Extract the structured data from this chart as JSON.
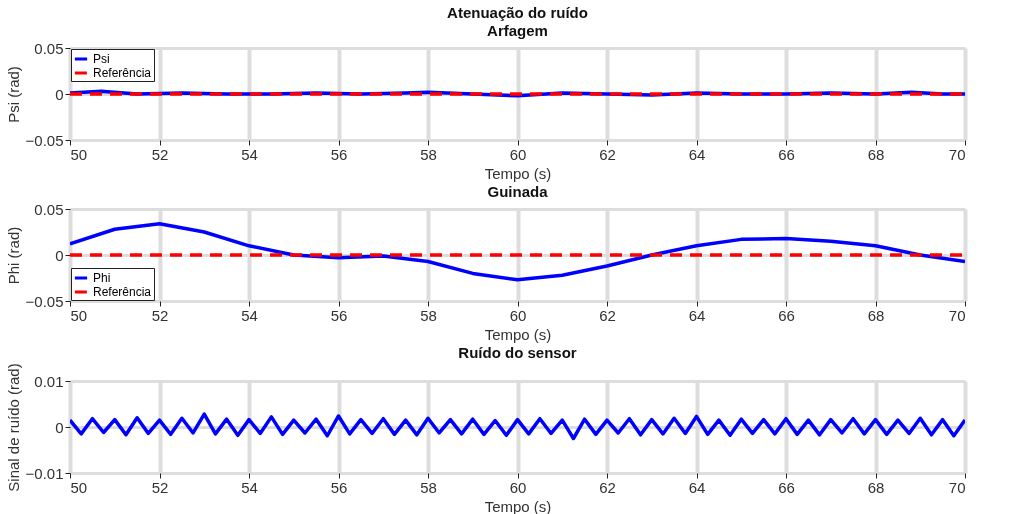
{
  "chart_data": [
    {
      "type": "line",
      "title": "Atenuação do ruído",
      "subtitle": "Arfagem",
      "xlabel": "Tempo (s)",
      "ylabel": "Psi (rad)",
      "xlim": [
        50,
        70
      ],
      "xticks": [
        50,
        52,
        54,
        56,
        58,
        60,
        62,
        64,
        66,
        68,
        70
      ],
      "ylim": [
        -0.05,
        0.05
      ],
      "yticks": [
        -0.05,
        0,
        0.05
      ],
      "grid": true,
      "legend": "top left",
      "x": [
        50,
        50.7,
        51.5,
        52.5,
        53.5,
        54.5,
        55.5,
        56.5,
        57.5,
        58,
        59,
        60,
        61,
        62,
        63,
        64,
        65,
        66,
        67,
        68,
        68.8,
        69.5,
        70
      ],
      "series": [
        {
          "name": "Psi",
          "color": "#0000ff",
          "line_style": "solid",
          "values": [
            0.001,
            0.003,
            0.0,
            0.001,
            0.0,
            0.0,
            0.001,
            0.0,
            0.001,
            0.002,
            0.0,
            -0.002,
            0.001,
            0.0,
            -0.001,
            0.001,
            0.0,
            0.0,
            0.001,
            0.0,
            0.002,
            0.0,
            0.0
          ]
        },
        {
          "name": "Referência",
          "color": "#ff0000",
          "line_style": "dashed",
          "values": [
            0,
            0,
            0,
            0,
            0,
            0,
            0,
            0,
            0,
            0,
            0,
            0,
            0,
            0,
            0,
            0,
            0,
            0,
            0,
            0,
            0,
            0,
            0
          ]
        }
      ]
    },
    {
      "type": "line",
      "title": "Guinada",
      "xlabel": "Tempo (s)",
      "ylabel": "Phi (rad)",
      "xlim": [
        50,
        70
      ],
      "xticks": [
        50,
        52,
        54,
        56,
        58,
        60,
        62,
        64,
        66,
        68,
        70
      ],
      "ylim": [
        -0.05,
        0.05
      ],
      "yticks": [
        -0.05,
        0,
        0.05
      ],
      "grid": true,
      "legend": "bottom left",
      "x": [
        50,
        51,
        52,
        53,
        54,
        55,
        56,
        57,
        58,
        59,
        60,
        61,
        62,
        63,
        64,
        65,
        66,
        67,
        68,
        69,
        70
      ],
      "series": [
        {
          "name": "Phi",
          "color": "#0000ff",
          "line_style": "solid",
          "values": [
            0.012,
            0.028,
            0.034,
            0.025,
            0.01,
            0.0,
            -0.003,
            -0.001,
            -0.007,
            -0.02,
            -0.027,
            -0.022,
            -0.012,
            0.0,
            0.01,
            0.017,
            0.018,
            0.015,
            0.01,
            0.0,
            -0.007
          ]
        },
        {
          "name": "Referência",
          "color": "#ff0000",
          "line_style": "dashed",
          "values": [
            0,
            0,
            0,
            0,
            0,
            0,
            0,
            0,
            0,
            0,
            0,
            0,
            0,
            0,
            0,
            0,
            0,
            0,
            0,
            0,
            0
          ]
        }
      ]
    },
    {
      "type": "line",
      "title": "Ruído do sensor",
      "xlabel": "Tempo (s)",
      "ylabel": "Sinal de ruído (rad)",
      "xlim": [
        50,
        70
      ],
      "xticks": [
        50,
        52,
        54,
        56,
        58,
        60,
        62,
        64,
        66,
        68,
        70
      ],
      "ylim": [
        -0.01,
        0.01
      ],
      "yticks": [
        -0.01,
        0,
        0.01
      ],
      "grid": true,
      "legend": false,
      "x": [
        50,
        50.25,
        50.5,
        50.75,
        51,
        51.25,
        51.5,
        51.75,
        52,
        52.25,
        52.5,
        52.75,
        53,
        53.25,
        53.5,
        53.75,
        54,
        54.25,
        54.5,
        54.75,
        55,
        55.25,
        55.5,
        55.75,
        56,
        56.25,
        56.5,
        56.75,
        57,
        57.25,
        57.5,
        57.75,
        58,
        58.25,
        58.5,
        58.75,
        59,
        59.25,
        59.5,
        59.75,
        60,
        60.25,
        60.5,
        60.75,
        61,
        61.25,
        61.5,
        61.75,
        62,
        62.25,
        62.5,
        62.75,
        63,
        63.25,
        63.5,
        63.75,
        64,
        64.25,
        64.5,
        64.75,
        65,
        65.25,
        65.5,
        65.75,
        66,
        66.25,
        66.5,
        66.75,
        67,
        67.25,
        67.5,
        67.75,
        68,
        68.25,
        68.5,
        68.75,
        69,
        69.25,
        69.5,
        69.75,
        70
      ],
      "series": [
        {
          "color": "#0000ff",
          "line_style": "solid",
          "values": [
            0.0015,
            -0.0015,
            0.0018,
            -0.0012,
            0.0016,
            -0.0017,
            0.002,
            -0.0014,
            0.0015,
            -0.0016,
            0.0019,
            -0.0013,
            0.0028,
            -0.0015,
            0.0017,
            -0.0018,
            0.0016,
            -0.0014,
            0.0022,
            -0.0016,
            0.0015,
            -0.0013,
            0.0017,
            -0.0019,
            0.0024,
            -0.0015,
            0.0016,
            -0.0014,
            0.0018,
            -0.0016,
            0.0015,
            -0.0017,
            0.0019,
            -0.0013,
            0.0016,
            -0.0015,
            0.0017,
            -0.0016,
            0.0014,
            -0.0018,
            0.0016,
            -0.0015,
            0.0018,
            -0.0014,
            0.0015,
            -0.0025,
            0.0017,
            -0.0016,
            0.0015,
            -0.0013,
            0.0018,
            -0.0017,
            0.0016,
            -0.0015,
            0.0019,
            -0.0014,
            0.0023,
            -0.0016,
            0.0015,
            -0.0018,
            0.0017,
            -0.0014,
            0.0016,
            -0.0015,
            0.0018,
            -0.0016,
            0.0015,
            -0.0017,
            0.0016,
            -0.0013,
            0.0018,
            -0.0015,
            0.0016,
            -0.0016,
            0.0015,
            -0.0014,
            0.0019,
            -0.0017,
            0.0016,
            -0.0019,
            0.0015
          ]
        }
      ]
    }
  ]
}
